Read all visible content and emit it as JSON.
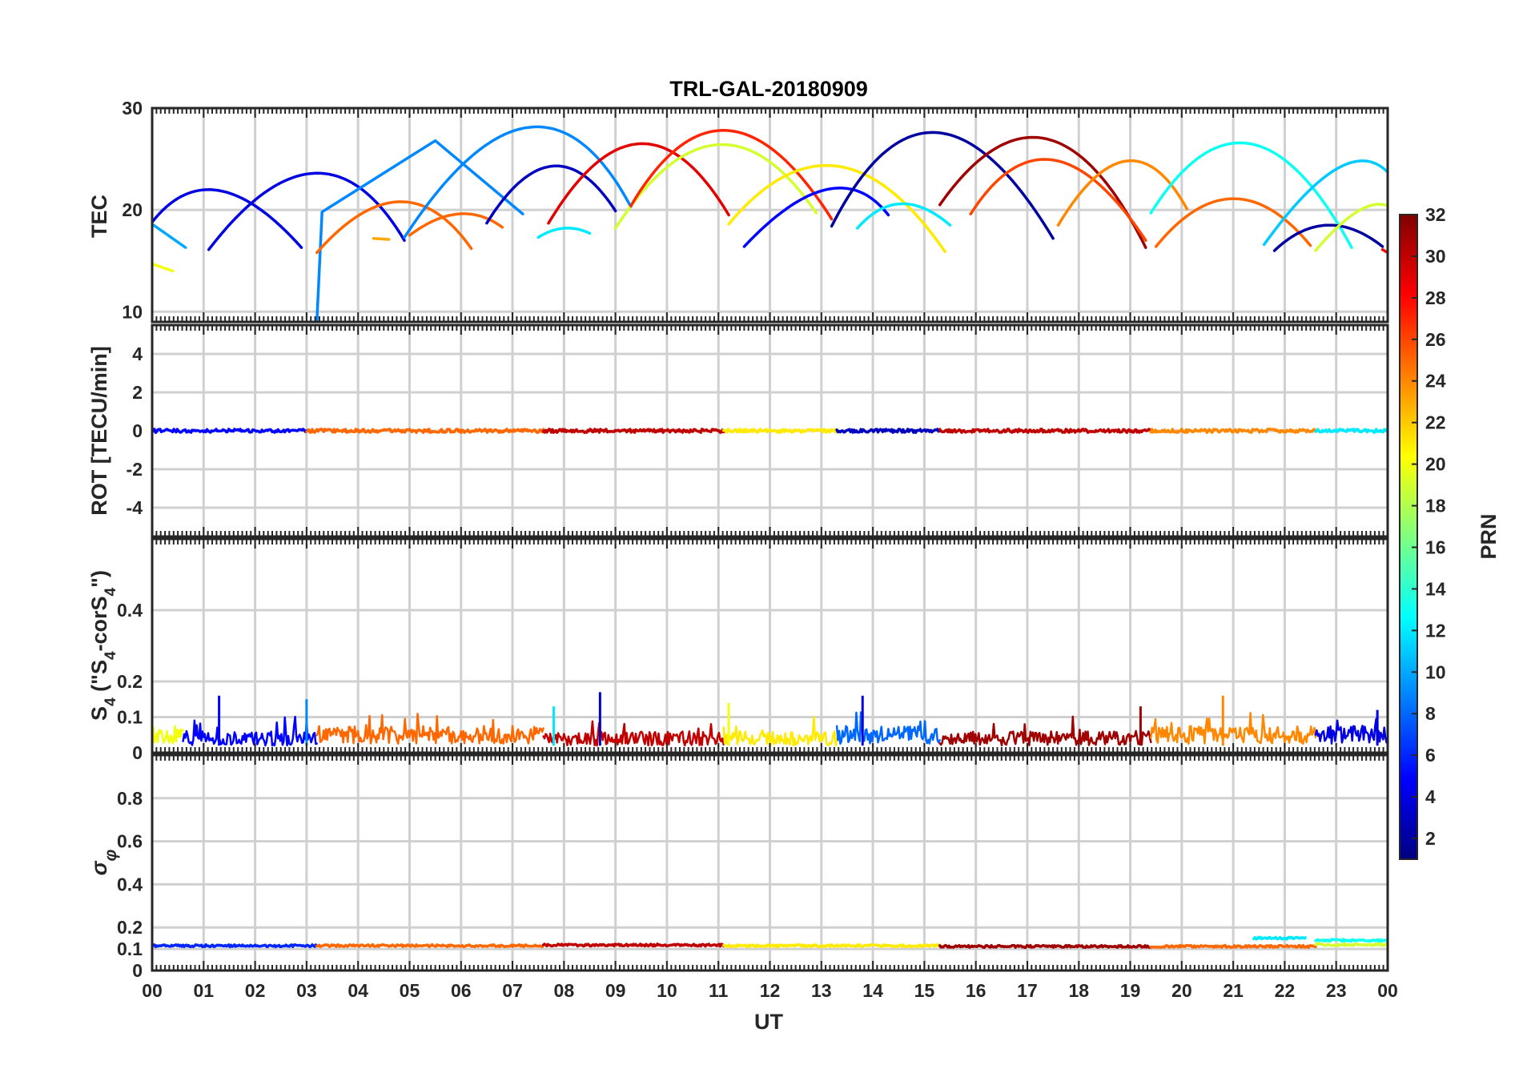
{
  "chart_data": {
    "type": "line",
    "title": "TRL-GAL-20180909",
    "xlabel": "UT",
    "xlim": [
      0,
      24
    ],
    "x_tick_labels": [
      "00",
      "01",
      "02",
      "03",
      "04",
      "05",
      "06",
      "07",
      "08",
      "09",
      "10",
      "11",
      "12",
      "13",
      "14",
      "15",
      "16",
      "17",
      "18",
      "19",
      "20",
      "21",
      "22",
      "23",
      "00"
    ],
    "grid": true,
    "colorbar": {
      "label": "PRN",
      "range": [
        1,
        32
      ],
      "colormap": "jet",
      "tick_labels": [
        "2",
        "4",
        "6",
        "8",
        "10",
        "12",
        "14",
        "16",
        "18",
        "20",
        "22",
        "24",
        "26",
        "28",
        "30",
        "32"
      ],
      "placement": "right"
    },
    "panels": [
      {
        "name": "tec",
        "ylabel": "TEC",
        "ylim": [
          9,
          30
        ],
        "ytick_labels": [
          "10",
          "20",
          "30"
        ],
        "series": [
          {
            "prn": 4,
            "x": [
              0.0,
              1.15,
              2.9
            ],
            "y": [
              18.8,
              21.9,
              16.3
            ]
          },
          {
            "prn": 10,
            "x": [
              0.0,
              0.3,
              0.65
            ],
            "y": [
              18.6,
              17.5,
              16.3
            ]
          },
          {
            "prn": 20,
            "x": [
              0.0,
              0.4
            ],
            "y": [
              14.7,
              14.0
            ]
          },
          {
            "prn": 4,
            "x": [
              1.1,
              3.3,
              4.9
            ],
            "y": [
              16.1,
              23.6,
              17.0
            ]
          },
          {
            "prn": 9,
            "x": [
              3.05,
              3.15,
              3.2,
              3.3,
              5.5,
              7.2
            ],
            "y": [
              8.6,
              8.8,
              9.0,
              19.8,
              26.8,
              19.6
            ]
          },
          {
            "prn": 25,
            "x": [
              3.2,
              4.9,
              6.2
            ],
            "y": [
              15.8,
              20.8,
              16.2
            ]
          },
          {
            "prn": 23,
            "x": [
              4.3,
              4.6
            ],
            "y": [
              17.2,
              17.1
            ]
          },
          {
            "prn": 9,
            "x": [
              4.9,
              7.5,
              9.3
            ],
            "y": [
              17.3,
              28.1,
              20.3
            ]
          },
          {
            "prn": 25,
            "x": [
              5.0,
              6.0,
              6.8
            ],
            "y": [
              17.5,
              19.6,
              18.3
            ]
          },
          {
            "prn": 3,
            "x": [
              6.5,
              7.8,
              9.0
            ],
            "y": [
              18.7,
              24.3,
              19.9
            ]
          },
          {
            "prn": 12,
            "x": [
              7.5,
              8.0,
              8.5
            ],
            "y": [
              17.3,
              18.2,
              17.7
            ]
          },
          {
            "prn": 29,
            "x": [
              7.7,
              9.5,
              11.2
            ],
            "y": [
              18.7,
              26.5,
              19.5
            ]
          },
          {
            "prn": 19,
            "x": [
              9.0,
              11.0,
              12.9
            ],
            "y": [
              18.2,
              26.4,
              19.7
            ]
          },
          {
            "prn": 27,
            "x": [
              9.3,
              11.1,
              13.2
            ],
            "y": [
              20.4,
              27.8,
              19.1
            ]
          },
          {
            "prn": 21,
            "x": [
              11.2,
              13.3,
              15.4
            ],
            "y": [
              18.6,
              24.3,
              15.9
            ]
          },
          {
            "prn": 5,
            "x": [
              11.5,
              13.3,
              14.3
            ],
            "y": [
              16.4,
              22.0,
              19.5
            ]
          },
          {
            "prn": 2,
            "x": [
              13.2,
              15.1,
              17.5
            ],
            "y": [
              18.4,
              27.6,
              17.2
            ]
          },
          {
            "prn": 12,
            "x": [
              13.7,
              14.5,
              15.5
            ],
            "y": [
              18.2,
              20.6,
              18.5
            ]
          },
          {
            "prn": 31,
            "x": [
              15.3,
              17.4,
              19.3
            ],
            "y": [
              20.5,
              27.0,
              16.3
            ]
          },
          {
            "prn": 26,
            "x": [
              15.9,
              17.4,
              19.3
            ],
            "y": [
              19.6,
              24.9,
              17.0
            ]
          },
          {
            "prn": 24,
            "x": [
              17.6,
              19.0,
              20.1
            ],
            "y": [
              18.5,
              24.8,
              20.1
            ]
          },
          {
            "prn": 25,
            "x": [
              19.5,
              21.0,
              22.5
            ],
            "y": [
              16.4,
              21.1,
              16.5
            ]
          },
          {
            "prn": 13,
            "x": [
              19.4,
              21.3,
              23.3
            ],
            "y": [
              19.7,
              26.5,
              16.3
            ]
          },
          {
            "prn": 11,
            "x": [
              21.6,
              23.2,
              24.0
            ],
            "y": [
              16.6,
              24.0,
              23.7
            ]
          },
          {
            "prn": 2,
            "x": [
              21.8,
              22.8,
              23.9
            ],
            "y": [
              16.0,
              18.5,
              16.4
            ]
          },
          {
            "prn": 19,
            "x": [
              22.6,
              23.5,
              24.0
            ],
            "y": [
              16.0,
              19.8,
              20.4
            ]
          },
          {
            "prn": 28,
            "x": [
              23.9,
              24.0
            ],
            "y": [
              16.1,
              15.8
            ]
          }
        ]
      },
      {
        "name": "rot",
        "ylabel": "ROT [TECU/min]",
        "ylim": [
          -5.5,
          5.5
        ],
        "ytick_labels": [
          "-4",
          "-2",
          "0",
          "2",
          "4"
        ],
        "series": [
          {
            "prn": 5,
            "x": [
              0.0,
              3.0
            ],
            "y": [
              0.0,
              0.0
            ]
          },
          {
            "prn": 25,
            "x": [
              3.0,
              7.6
            ],
            "y": [
              0.0,
              0.0
            ]
          },
          {
            "prn": 30,
            "x": [
              7.6,
              11.1
            ],
            "y": [
              0.0,
              0.0
            ]
          },
          {
            "prn": 21,
            "x": [
              11.1,
              13.3
            ],
            "y": [
              0.0,
              0.0
            ]
          },
          {
            "prn": 3,
            "x": [
              13.3,
              15.3
            ],
            "y": [
              0.0,
              0.0
            ]
          },
          {
            "prn": 30,
            "x": [
              15.3,
              19.4
            ],
            "y": [
              0.0,
              0.0
            ]
          },
          {
            "prn": 24,
            "x": [
              19.4,
              22.6
            ],
            "y": [
              0.0,
              0.0
            ]
          },
          {
            "prn": 12,
            "x": [
              22.6,
              24.0
            ],
            "y": [
              0.0,
              0.0
            ]
          }
        ]
      },
      {
        "name": "s4",
        "ylabel": "S4 (\"S4-corS4\")",
        "ylim": [
          0,
          0.6
        ],
        "ytick_labels": [
          "0",
          "0.1",
          "0.2",
          "0.4"
        ],
        "series": [
          {
            "prn": 20,
            "x": [
              0.0,
              0.6
            ],
            "y": [
              0.05,
              0.05
            ]
          },
          {
            "prn": 5,
            "x": [
              0.6,
              3.2
            ],
            "y": [
              0.04,
              0.04
            ]
          },
          {
            "prn": 25,
            "x": [
              3.2,
              7.6
            ],
            "y": [
              0.05,
              0.05
            ]
          },
          {
            "prn": 30,
            "x": [
              7.6,
              11.1
            ],
            "y": [
              0.04,
              0.04
            ]
          },
          {
            "prn": 21,
            "x": [
              11.1,
              13.3
            ],
            "y": [
              0.04,
              0.04
            ]
          },
          {
            "prn": 8,
            "x": [
              13.3,
              15.3
            ],
            "y": [
              0.05,
              0.05
            ]
          },
          {
            "prn": 31,
            "x": [
              15.3,
              19.4
            ],
            "y": [
              0.04,
              0.04
            ]
          },
          {
            "prn": 24,
            "x": [
              19.4,
              22.6
            ],
            "y": [
              0.05,
              0.05
            ]
          },
          {
            "prn": 4,
            "x": [
              22.6,
              24.0
            ],
            "y": [
              0.05,
              0.05
            ]
          }
        ],
        "spikes": [
          {
            "prn": 5,
            "x": 1.3,
            "y": 0.16
          },
          {
            "prn": 9,
            "x": 3.0,
            "y": 0.15
          },
          {
            "prn": 3,
            "x": 8.7,
            "y": 0.17
          },
          {
            "prn": 12,
            "x": 7.8,
            "y": 0.13
          },
          {
            "prn": 20,
            "x": 11.2,
            "y": 0.14
          },
          {
            "prn": 4,
            "x": 13.8,
            "y": 0.16
          },
          {
            "prn": 31,
            "x": 19.2,
            "y": 0.13
          },
          {
            "prn": 24,
            "x": 20.8,
            "y": 0.16
          },
          {
            "prn": 4,
            "x": 23.8,
            "y": 0.12
          }
        ]
      },
      {
        "name": "sigma_phi",
        "ylabel": "σ_φ",
        "ylim": [
          0,
          1.0
        ],
        "ytick_labels": [
          "0",
          "0.1",
          "0.2",
          "0.4",
          "0.6",
          "0.8"
        ],
        "series": [
          {
            "prn": 6,
            "x": [
              0.0,
              3.2
            ],
            "y": [
              0.115,
              0.115
            ]
          },
          {
            "prn": 25,
            "x": [
              3.2,
              7.6
            ],
            "y": [
              0.115,
              0.115
            ]
          },
          {
            "prn": 30,
            "x": [
              7.6,
              11.1
            ],
            "y": [
              0.118,
              0.118
            ]
          },
          {
            "prn": 21,
            "x": [
              11.1,
              15.3
            ],
            "y": [
              0.115,
              0.115
            ]
          },
          {
            "prn": 31,
            "x": [
              15.3,
              19.4
            ],
            "y": [
              0.112,
              0.112
            ]
          },
          {
            "prn": 25,
            "x": [
              19.4,
              22.6
            ],
            "y": [
              0.112,
              0.112
            ]
          },
          {
            "prn": 12,
            "x": [
              21.4,
              22.4
            ],
            "y": [
              0.15,
              0.15
            ]
          },
          {
            "prn": 13,
            "x": [
              22.6,
              24.0
            ],
            "y": [
              0.14,
              0.14
            ]
          },
          {
            "prn": 19,
            "x": [
              22.6,
              24.0
            ],
            "y": [
              0.12,
              0.12
            ]
          }
        ]
      }
    ]
  }
}
